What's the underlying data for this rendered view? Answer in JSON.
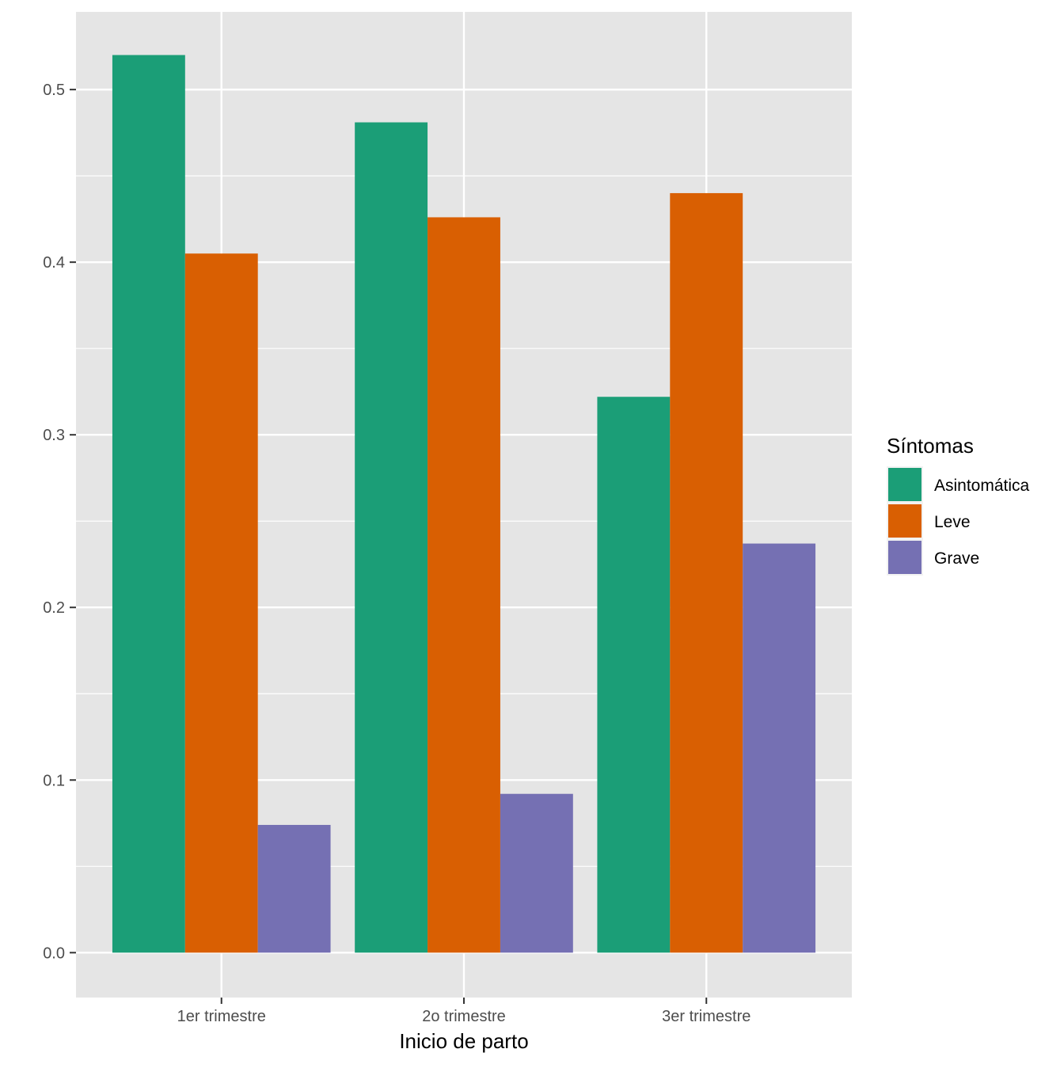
{
  "chart_data": {
    "type": "bar",
    "title": "",
    "xlabel": "Inicio de parto",
    "ylabel": "",
    "categories": [
      "1er trimestre",
      "2o trimestre",
      "3er trimestre"
    ],
    "series": [
      {
        "name": "Asintomática",
        "color": "#1b9e77",
        "values": [
          0.52,
          0.481,
          0.322
        ]
      },
      {
        "name": "Leve",
        "color": "#d95f02",
        "values": [
          0.405,
          0.426,
          0.44
        ]
      },
      {
        "name": "Grave",
        "color": "#7570b3",
        "values": [
          0.074,
          0.092,
          0.237
        ]
      }
    ],
    "ylim": [
      -0.026,
      0.545
    ],
    "yticks": [
      0.0,
      0.1,
      0.2,
      0.3,
      0.4,
      0.5
    ],
    "ytick_labels": [
      "0.0",
      "0.1",
      "0.2",
      "0.3",
      "0.4",
      "0.5"
    ],
    "grid": true,
    "legend": {
      "title": "Síntomas",
      "position": "right"
    },
    "colors": {
      "panel": "#e5e5e5",
      "grid": "#ffffff",
      "axis_text": "#4d4d4d"
    }
  }
}
